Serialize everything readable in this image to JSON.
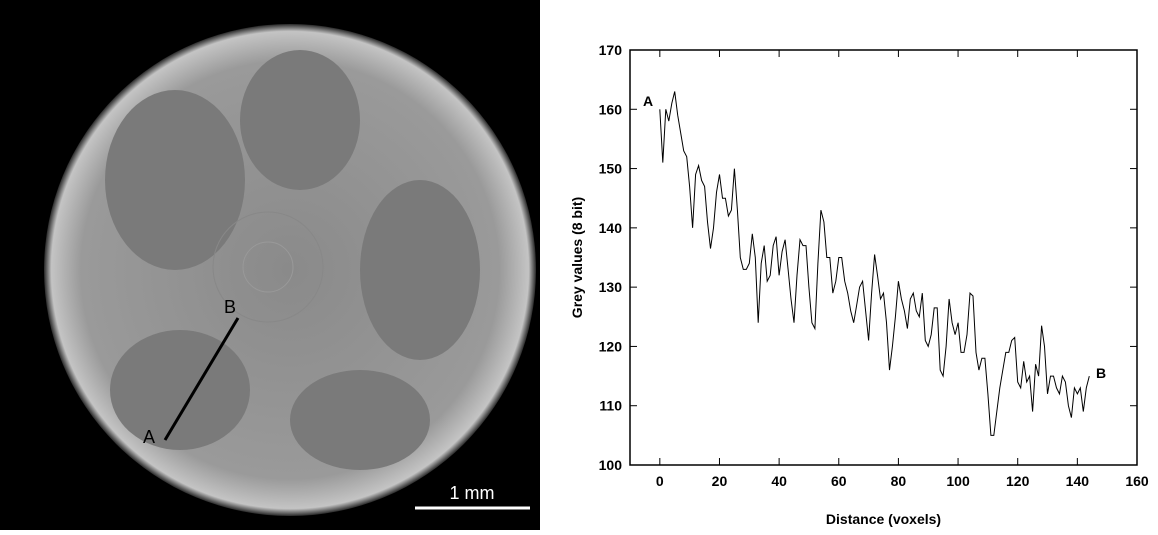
{
  "image": {
    "label_a": "A",
    "label_b": "B",
    "scale_bar": "1 mm"
  },
  "chart_data": {
    "type": "line",
    "x_label": "Distance (voxels)",
    "y_label": "Grey values (8 bit)",
    "annotations": [
      "A",
      "B"
    ],
    "color": "#000000",
    "x": [
      0,
      1,
      2,
      3,
      4,
      5,
      6,
      7,
      8,
      9,
      10,
      11,
      12,
      13,
      14,
      15,
      16,
      17,
      18,
      19,
      20,
      21,
      22,
      23,
      24,
      25,
      26,
      27,
      28,
      29,
      30,
      31,
      32,
      33,
      34,
      35,
      36,
      37,
      38,
      39,
      40,
      41,
      42,
      43,
      44,
      45,
      46,
      47,
      48,
      49,
      50,
      51,
      52,
      53,
      54,
      55,
      56,
      57,
      58,
      59,
      60,
      61,
      62,
      63,
      64,
      65,
      66,
      67,
      68,
      69,
      70,
      71,
      72,
      73,
      74,
      75,
      76,
      77,
      78,
      79,
      80,
      81,
      82,
      83,
      84,
      85,
      86,
      87,
      88,
      89,
      90,
      91,
      92,
      93,
      94,
      95,
      96,
      97,
      98,
      99,
      100,
      101,
      102,
      103,
      104,
      105,
      106,
      107,
      108,
      109,
      110,
      111,
      112,
      113,
      114,
      115,
      116,
      117,
      118,
      119,
      120,
      121,
      122,
      123,
      124,
      125,
      126,
      127,
      128,
      129,
      130,
      131,
      132,
      133,
      134,
      135,
      136,
      137,
      138,
      139,
      140,
      141,
      142,
      143,
      144
    ],
    "values": [
      160,
      151,
      160,
      158,
      161,
      163,
      159,
      156,
      153,
      152,
      147,
      140,
      149,
      150.5,
      148,
      147,
      141,
      136.5,
      140,
      146,
      149,
      145,
      145,
      142,
      143,
      150,
      143,
      135,
      133,
      133,
      134,
      139,
      135,
      124,
      134,
      137,
      131,
      132,
      137,
      138.5,
      132,
      136,
      138,
      133,
      128,
      124,
      132,
      138,
      137,
      137,
      130,
      124,
      123,
      134,
      143,
      141,
      135,
      135,
      129,
      131,
      135,
      135,
      131,
      129,
      126,
      124,
      127,
      130,
      131,
      126,
      121,
      129,
      135.5,
      132,
      128,
      129,
      124,
      116,
      120,
      125,
      131,
      128,
      126,
      123,
      128,
      129,
      126,
      125,
      129,
      121,
      120,
      122,
      126.5,
      126.5,
      116,
      115,
      120,
      128,
      124,
      122,
      124,
      119,
      119,
      122,
      129,
      128.5,
      119,
      116,
      118,
      118,
      112,
      105,
      105,
      109,
      113,
      116,
      119,
      119,
      121,
      121.5,
      114,
      113,
      117.5,
      114,
      115,
      109,
      117,
      115,
      123.5,
      120,
      112,
      115,
      115,
      113,
      112,
      115,
      114,
      110,
      108,
      113,
      112,
      113,
      109,
      113,
      115
    ],
    "xlim": [
      -10,
      160
    ],
    "ylim": [
      100,
      170
    ],
    "xticks": [
      0,
      20,
      40,
      60,
      80,
      100,
      120,
      140,
      160
    ],
    "yticks": [
      100,
      110,
      120,
      130,
      140,
      150,
      160,
      170
    ]
  }
}
